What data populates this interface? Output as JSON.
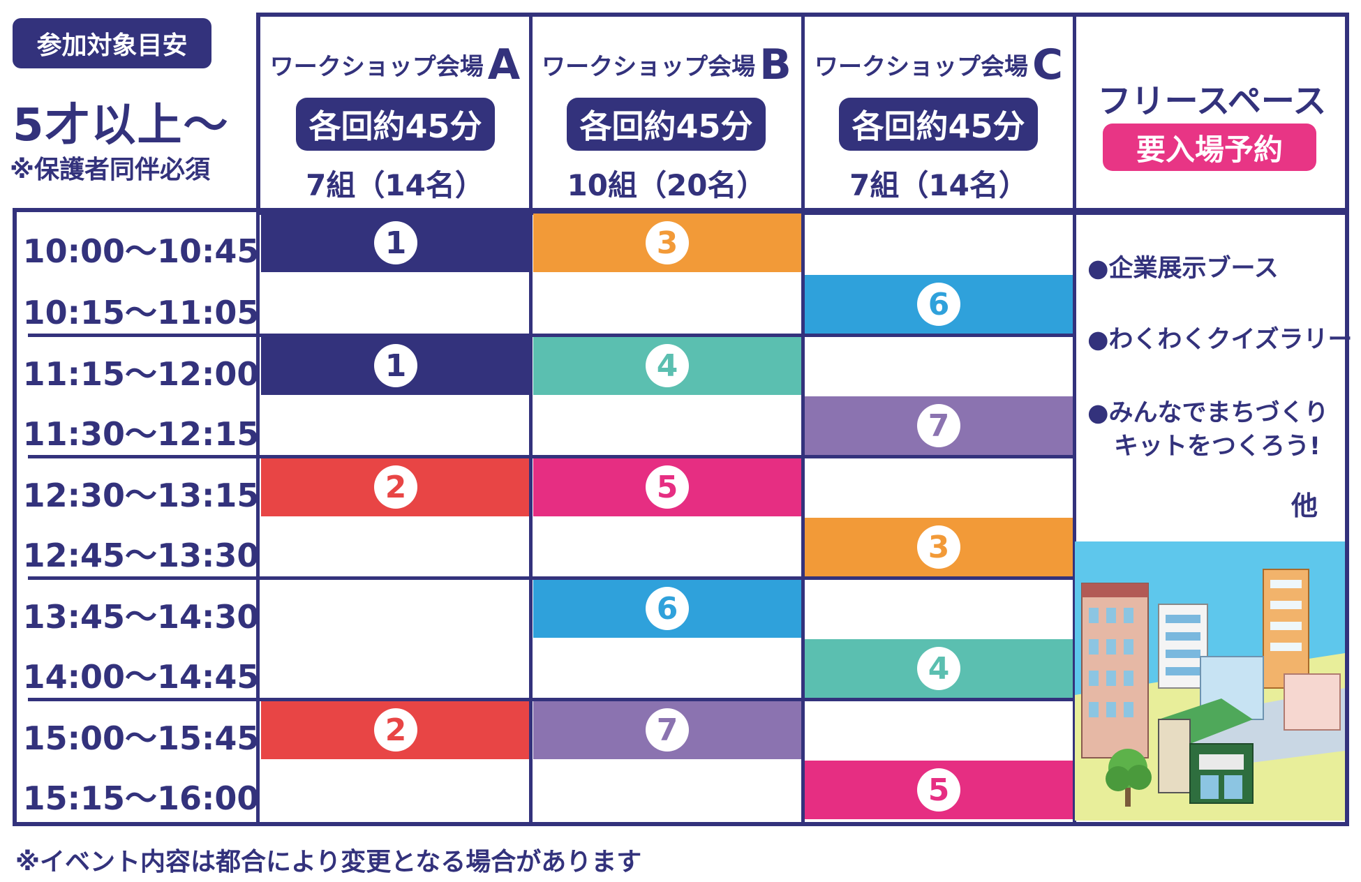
{
  "target": {
    "badge": "参加対象目安",
    "age": "5才以上〜",
    "note": "※保護者同伴必須"
  },
  "venues": [
    {
      "name": "ワークショップ会場",
      "letter": "A",
      "duration": "各回約45分",
      "capacity": "7組（14名）"
    },
    {
      "name": "ワークショップ会場",
      "letter": "B",
      "duration": "各回約45分",
      "capacity": "10組（20名）"
    },
    {
      "name": "ワークショップ会場",
      "letter": "C",
      "duration": "各回約45分",
      "capacity": "7組（14名）"
    }
  ],
  "free_space": {
    "title": "フリースペース",
    "reservation": "要入場予約",
    "items": [
      "●企業展示ブース",
      "●わくわくクイズラリー",
      "●みんなでまちづくり",
      "キットをつくろう!"
    ],
    "other": "他"
  },
  "times": [
    "10:00〜10:45",
    "10:15〜11:05",
    "11:15〜12:00",
    "11:30〜12:15",
    "12:30〜13:15",
    "12:45〜13:30",
    "13:45〜14:30",
    "14:00〜14:45",
    "15:00〜15:45",
    "15:15〜16:00"
  ],
  "schedule": {
    "A": [
      "1",
      "",
      "1",
      "",
      "2",
      "",
      "",
      "",
      "2",
      ""
    ],
    "B": [
      "3",
      "",
      "4",
      "",
      "5",
      "",
      "6",
      "",
      "7",
      ""
    ],
    "C": [
      "",
      "6",
      "",
      "7",
      "",
      "3",
      "",
      "4",
      "",
      "5"
    ]
  },
  "program_colors": {
    "1": "#33327c",
    "2": "#e84545",
    "3": "#f29a38",
    "4": "#5bbfb0",
    "5": "#e62e82",
    "6": "#2fa1db",
    "7": "#8b73b0"
  },
  "footnote": "※イベント内容は都合により変更となる場合があります"
}
